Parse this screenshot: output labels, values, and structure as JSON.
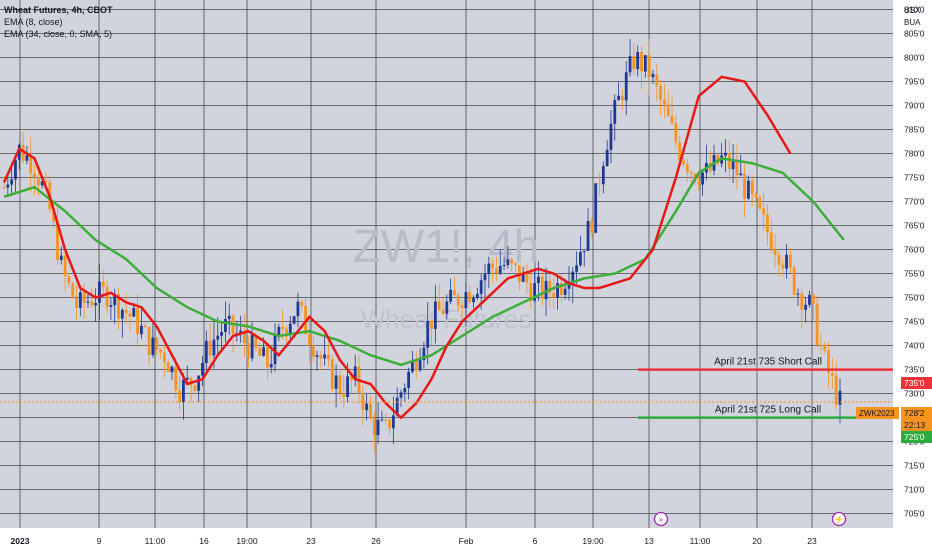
{
  "legend": {
    "title": "Wheat Futures, 4h, CBOT",
    "ema_fast": "EMA (8, close)",
    "ema_slow": "EMA (34, close, 0, SMA, 5)"
  },
  "watermark": {
    "symbol": "ZW1!, 4h",
    "name": "Wheat Futures"
  },
  "price_axis": {
    "currency": "USX",
    "unit": "BUA"
  },
  "colors": {
    "background": "#d1d4dc",
    "grid": "#4a4a4a",
    "up_candle": "#1f3a93",
    "down_candle": "#f7931e",
    "ema_fast": "#e81818",
    "ema_slow": "#3ead3a",
    "short_call": "#f0313b",
    "long_call": "#2eab3f"
  },
  "annotations": {
    "short_call": {
      "label": "April 21st 735 Short Call",
      "price": 735,
      "price_label": "735'0"
    },
    "long_call": {
      "label": "April 21st 725 Long Call",
      "price": 725,
      "price_label": "725'0"
    },
    "last_price": {
      "symbol": "ZWK2023",
      "price_label": "728'2",
      "countdown": "22:13"
    }
  },
  "events": [
    "forward-icon",
    "dividend-icon"
  ],
  "chart_data": {
    "type": "line",
    "title": "Wheat Futures, 4h, CBOT",
    "xlabel": "",
    "ylabel": "USX",
    "ylim": [
      702,
      812
    ],
    "yticks": [
      705,
      710,
      715,
      720,
      725,
      730,
      735,
      740,
      745,
      750,
      755,
      760,
      765,
      770,
      775,
      780,
      785,
      790,
      795,
      800,
      805,
      810
    ],
    "ytick_labels": [
      "705'0",
      "710'0",
      "715'0",
      "720'0",
      "725'0",
      "730'0",
      "735'0",
      "740'0",
      "745'0",
      "750'0",
      "755'0",
      "760'0",
      "765'0",
      "770'0",
      "775'0",
      "780'0",
      "785'0",
      "790'0",
      "795'0",
      "800'0",
      "805'0",
      "810'0"
    ],
    "x_tick_labels": [
      "2023",
      "9",
      "11:00",
      "16",
      "19:00",
      "23",
      "26",
      "Feb",
      "6",
      "19:00",
      "13",
      "11:00",
      "20",
      "23"
    ],
    "series": [
      {
        "name": "EMA (8, close)",
        "bar": [
          0,
          4,
          8,
          12,
          16,
          20,
          24,
          28,
          32,
          36,
          40,
          44,
          48,
          52,
          56,
          60,
          64,
          68,
          72,
          76,
          80,
          84,
          88,
          92,
          96,
          100,
          104,
          108,
          112,
          116,
          120,
          124,
          128,
          132,
          136,
          140,
          144,
          148,
          152,
          156,
          164,
          170,
          176,
          182,
          188,
          194,
          200,
          206
        ],
        "values": [
          774,
          781,
          779,
          771,
          760,
          752,
          750,
          751,
          749,
          748,
          744,
          738,
          732,
          733,
          738,
          742,
          743,
          741,
          738,
          742,
          746,
          743,
          737,
          733,
          732,
          728,
          725,
          728,
          733,
          740,
          745,
          748,
          751,
          754,
          755,
          756,
          755,
          753,
          752,
          752,
          754,
          760,
          775,
          792,
          796,
          795,
          788,
          780
        ]
      },
      {
        "name": "EMA (34, close, 0, SMA, 5)",
        "bar": [
          0,
          8,
          16,
          24,
          32,
          40,
          48,
          56,
          64,
          72,
          80,
          88,
          96,
          104,
          112,
          120,
          128,
          136,
          144,
          152,
          160,
          168,
          176,
          182,
          188,
          196,
          204,
          212,
          220
        ],
        "values": [
          771,
          773,
          768,
          762,
          758,
          752,
          748,
          745,
          744,
          742,
          743,
          741,
          738,
          736,
          738,
          742,
          746,
          749,
          752,
          754,
          755,
          758,
          768,
          776,
          779,
          778,
          776,
          770,
          762
        ]
      }
    ],
    "candles_note": "approximate OHLC path, 4h bars",
    "close_path": [
      773,
      781,
      778,
      770,
      755,
      748,
      750,
      751,
      748,
      745,
      740,
      738,
      731,
      733,
      740,
      744,
      742,
      739,
      736,
      744,
      748,
      741,
      735,
      731,
      733,
      724,
      722,
      730,
      737,
      745,
      748,
      750,
      752,
      756,
      757,
      755,
      752,
      751,
      753,
      758,
      765,
      782,
      792,
      800,
      797,
      789,
      781,
      776,
      776,
      779,
      776,
      770,
      764,
      759,
      752,
      748,
      736,
      728
    ],
    "grid": true
  }
}
